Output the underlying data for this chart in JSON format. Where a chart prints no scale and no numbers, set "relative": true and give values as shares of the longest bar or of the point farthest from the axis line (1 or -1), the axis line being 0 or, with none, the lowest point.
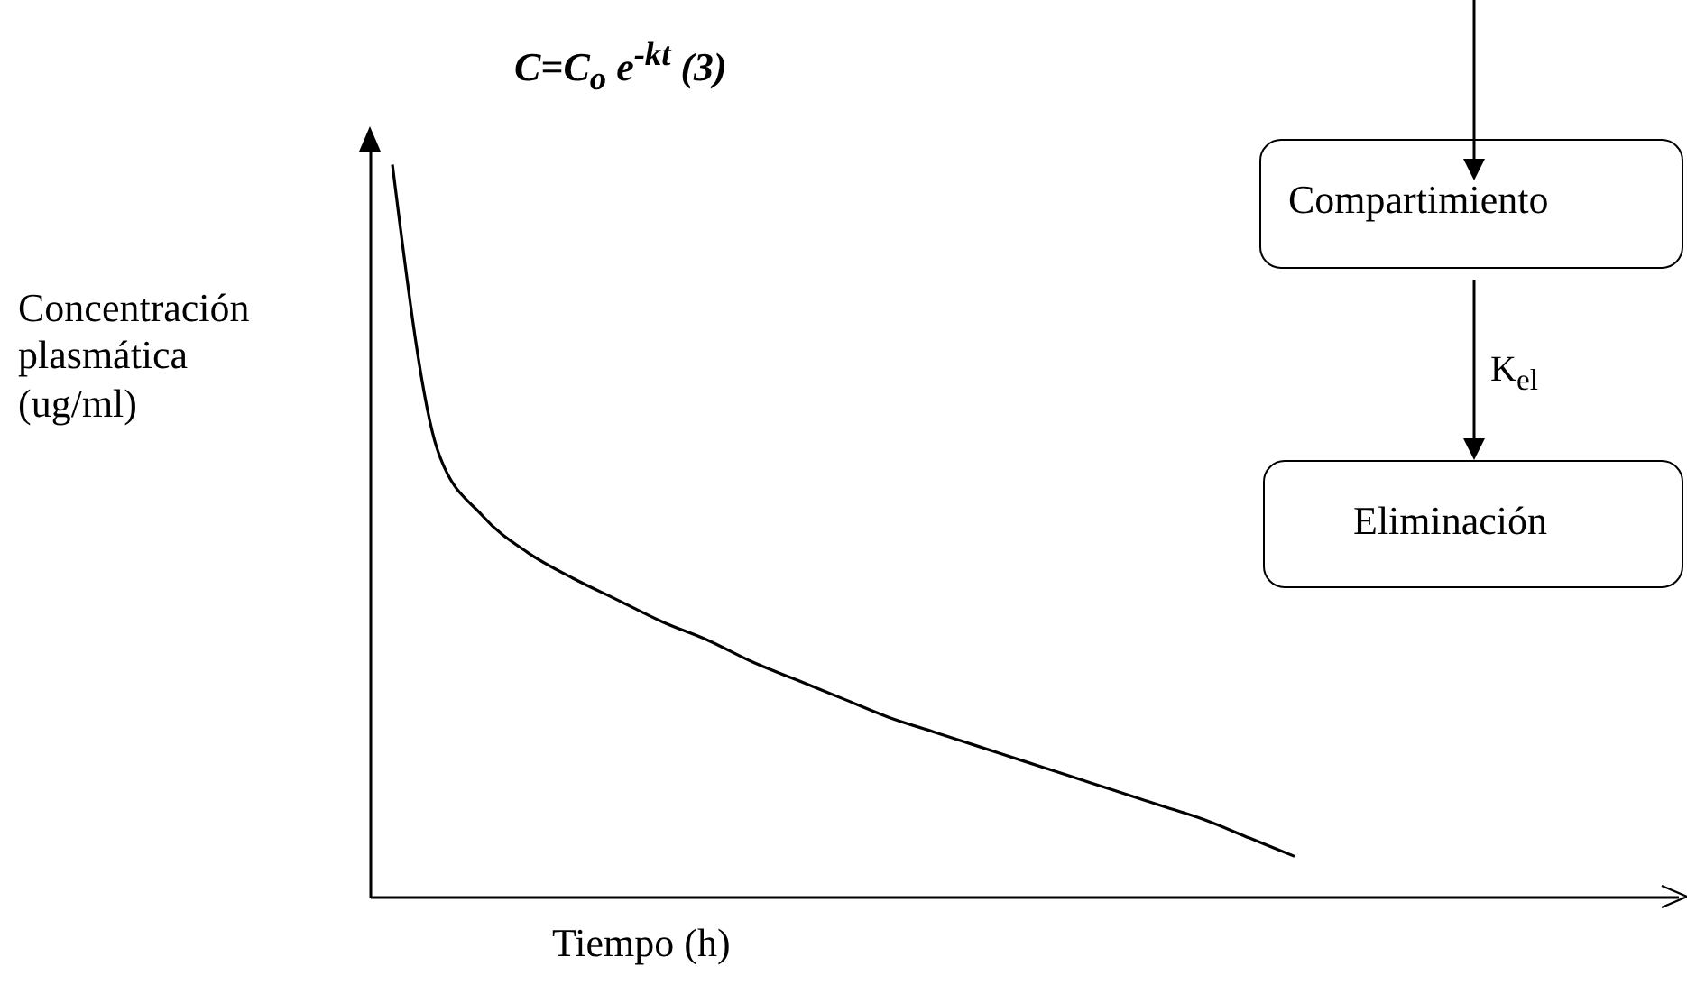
{
  "chart_data": {
    "type": "line",
    "relative": true,
    "title": "C=C$_{o}$ e$^{-kt}$ (3)",
    "xlabel": "Tiempo (h)",
    "ylabel": "Concentración plasmática (ug/ml)",
    "annotations": [
      "Compartimiento",
      "K$_{el}$",
      "Eliminación"
    ],
    "categories": [
      null,
      null,
      null,
      null,
      null,
      null,
      null,
      null,
      null,
      null,
      null,
      null,
      null,
      null,
      null,
      null,
      null,
      null,
      null,
      null,
      null,
      null,
      null,
      null,
      null,
      null,
      null,
      null,
      null
    ],
    "series": [
      {
        "color": "#000000",
        "values": [
          1,
          0.61,
          0.52,
          0.47,
          0.435,
          0.405,
          0.375,
          0.35,
          0.32,
          0.295,
          0.27,
          0.245,
          0.225,
          0.205,
          0.185,
          0.165,
          0.145,
          0.125,
          0.105,
          0.08,
          0.055,
          null,
          null,
          null,
          null,
          null,
          null,
          null,
          null
        ]
      }
    ],
    "grid": false,
    "marker": "none",
    "line_style": "solid"
  }
}
